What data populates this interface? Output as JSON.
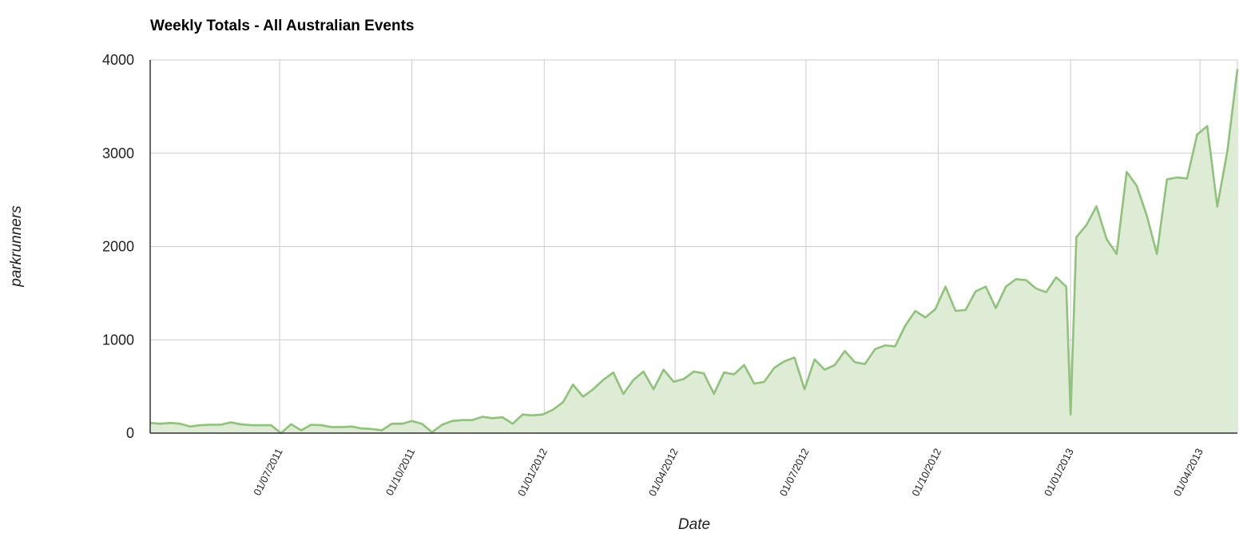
{
  "chart_data": {
    "type": "area",
    "title": "Weekly Totals - All Australian Events",
    "xlabel": "Date",
    "ylabel": "parkrunners",
    "ylim": [
      0,
      4000
    ],
    "yticks": [
      "0",
      "1000",
      "2000",
      "3000",
      "4000"
    ],
    "xticks": [
      {
        "date": "2011-07-01",
        "label": "01/07/2011"
      },
      {
        "date": "2011-10-01",
        "label": "01/10/2011"
      },
      {
        "date": "2012-01-01",
        "label": "01/01/2012"
      },
      {
        "date": "2012-04-01",
        "label": "01/04/2012"
      },
      {
        "date": "2012-07-01",
        "label": "01/07/2012"
      },
      {
        "date": "2012-10-01",
        "label": "01/10/2012"
      },
      {
        "date": "2013-01-01",
        "label": "01/01/2013"
      },
      {
        "date": "2013-04-01",
        "label": "01/04/2013"
      }
    ],
    "xlim": [
      "2011-04-02",
      "2013-04-27"
    ],
    "grid": true,
    "colors": {
      "line": "#8fc27a",
      "fill": "#deebd5",
      "grid": "#cccccc",
      "axis": "#333333"
    },
    "series": [
      {
        "values": [
          [
            "2011-04-02",
            110
          ],
          [
            "2011-04-09",
            100
          ],
          [
            "2011-04-16",
            110
          ],
          [
            "2011-04-23",
            100
          ],
          [
            "2011-04-30",
            70
          ],
          [
            "2011-05-07",
            85
          ],
          [
            "2011-05-14",
            90
          ],
          [
            "2011-05-21",
            90
          ],
          [
            "2011-05-28",
            115
          ],
          [
            "2011-06-04",
            95
          ],
          [
            "2011-06-11",
            85
          ],
          [
            "2011-06-18",
            85
          ],
          [
            "2011-06-25",
            85
          ],
          [
            "2011-07-02",
            0
          ],
          [
            "2011-07-09",
            95
          ],
          [
            "2011-07-16",
            30
          ],
          [
            "2011-07-23",
            90
          ],
          [
            "2011-07-30",
            85
          ],
          [
            "2011-08-06",
            65
          ],
          [
            "2011-08-13",
            65
          ],
          [
            "2011-08-20",
            70
          ],
          [
            "2011-08-27",
            50
          ],
          [
            "2011-09-03",
            45
          ],
          [
            "2011-09-10",
            30
          ],
          [
            "2011-09-17",
            100
          ],
          [
            "2011-09-24",
            100
          ],
          [
            "2011-10-01",
            130
          ],
          [
            "2011-10-08",
            100
          ],
          [
            "2011-10-15",
            10
          ],
          [
            "2011-10-22",
            90
          ],
          [
            "2011-10-29",
            130
          ],
          [
            "2011-11-05",
            140
          ],
          [
            "2011-11-12",
            140
          ],
          [
            "2011-11-19",
            175
          ],
          [
            "2011-11-26",
            160
          ],
          [
            "2011-12-03",
            170
          ],
          [
            "2011-12-10",
            100
          ],
          [
            "2011-12-17",
            200
          ],
          [
            "2011-12-24",
            190
          ],
          [
            "2011-12-31",
            200
          ],
          [
            "2012-01-07",
            250
          ],
          [
            "2012-01-14",
            330
          ],
          [
            "2012-01-21",
            520
          ],
          [
            "2012-01-28",
            390
          ],
          [
            "2012-02-04",
            470
          ],
          [
            "2012-02-11",
            570
          ],
          [
            "2012-02-18",
            650
          ],
          [
            "2012-02-25",
            420
          ],
          [
            "2012-03-03",
            570
          ],
          [
            "2012-03-10",
            660
          ],
          [
            "2012-03-17",
            470
          ],
          [
            "2012-03-24",
            680
          ],
          [
            "2012-03-31",
            550
          ],
          [
            "2012-04-07",
            580
          ],
          [
            "2012-04-14",
            660
          ],
          [
            "2012-04-21",
            640
          ],
          [
            "2012-04-28",
            420
          ],
          [
            "2012-05-05",
            650
          ],
          [
            "2012-05-12",
            630
          ],
          [
            "2012-05-19",
            730
          ],
          [
            "2012-05-26",
            530
          ],
          [
            "2012-06-02",
            550
          ],
          [
            "2012-06-09",
            700
          ],
          [
            "2012-06-16",
            770
          ],
          [
            "2012-06-23",
            810
          ],
          [
            "2012-06-30",
            470
          ],
          [
            "2012-07-07",
            790
          ],
          [
            "2012-07-14",
            680
          ],
          [
            "2012-07-21",
            730
          ],
          [
            "2012-07-28",
            880
          ],
          [
            "2012-08-04",
            760
          ],
          [
            "2012-08-11",
            740
          ],
          [
            "2012-08-18",
            900
          ],
          [
            "2012-08-25",
            940
          ],
          [
            "2012-09-01",
            930
          ],
          [
            "2012-09-08",
            1150
          ],
          [
            "2012-09-15",
            1310
          ],
          [
            "2012-09-22",
            1240
          ],
          [
            "2012-09-29",
            1330
          ],
          [
            "2012-10-06",
            1570
          ],
          [
            "2012-10-13",
            1310
          ],
          [
            "2012-10-20",
            1320
          ],
          [
            "2012-10-27",
            1520
          ],
          [
            "2012-11-03",
            1570
          ],
          [
            "2012-11-10",
            1340
          ],
          [
            "2012-11-17",
            1570
          ],
          [
            "2012-11-24",
            1650
          ],
          [
            "2012-12-01",
            1640
          ],
          [
            "2012-12-08",
            1550
          ],
          [
            "2012-12-15",
            1510
          ],
          [
            "2012-12-22",
            1670
          ],
          [
            "2012-12-29",
            1570
          ],
          [
            "2013-01-01",
            200
          ],
          [
            "2013-01-05",
            2100
          ],
          [
            "2013-01-12",
            2230
          ],
          [
            "2013-01-19",
            2430
          ],
          [
            "2013-01-26",
            2080
          ],
          [
            "2013-02-02",
            1920
          ],
          [
            "2013-02-09",
            2800
          ],
          [
            "2013-02-16",
            2650
          ],
          [
            "2013-02-23",
            2330
          ],
          [
            "2013-03-02",
            1920
          ],
          [
            "2013-03-09",
            2720
          ],
          [
            "2013-03-16",
            2740
          ],
          [
            "2013-03-23",
            2730
          ],
          [
            "2013-03-30",
            3200
          ],
          [
            "2013-04-06",
            3290
          ],
          [
            "2013-04-13",
            2430
          ],
          [
            "2013-04-20",
            3020
          ],
          [
            "2013-04-27",
            3900
          ]
        ]
      }
    ]
  }
}
